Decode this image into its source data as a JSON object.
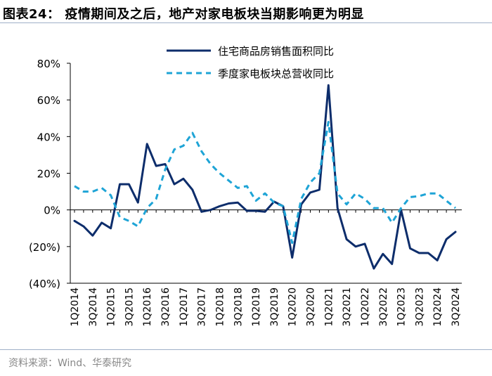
{
  "header": {
    "title": "图表24：  疫情期间及之后，地产对家电板块当期影响更为明显"
  },
  "footer": {
    "source": "资料来源：Wind、华泰研究"
  },
  "chart_data": {
    "type": "line",
    "title": "",
    "xlabel": "",
    "ylabel": "",
    "ylim": [
      -40,
      80
    ],
    "y_ticks": [
      -40,
      -20,
      0,
      20,
      40,
      60,
      80
    ],
    "y_tick_labels": [
      "(40%)",
      "(20%)",
      "0%",
      "20%",
      "40%",
      "60%",
      "80%"
    ],
    "x_tick_labels": [
      "1Q2014",
      "3Q2014",
      "1Q2015",
      "3Q2015",
      "1Q2016",
      "3Q2016",
      "1Q2017",
      "3Q2017",
      "1Q2018",
      "3Q2018",
      "1Q2019",
      "3Q2019",
      "1Q2020",
      "3Q2020",
      "1Q2021",
      "3Q2021",
      "1Q2022",
      "3Q2022",
      "1Q2023",
      "3Q2023",
      "1Q2024",
      "3Q2024"
    ],
    "legend_position": "top-center",
    "series": [
      {
        "name": "住宅商品房销售面积同比",
        "color": "#0d2d6b",
        "style": "solid",
        "values": [
          -6,
          -9,
          -14,
          -7,
          -10,
          14,
          14,
          4,
          36,
          24,
          25,
          14,
          17,
          11,
          -1,
          0,
          2,
          3.5,
          4,
          -0.5,
          -0.5,
          -1,
          4.5,
          2,
          -26,
          3,
          9.5,
          11,
          68,
          1,
          -16,
          -20,
          -18.5,
          -32,
          -24,
          -29.5,
          0,
          -21,
          -23.5,
          -23.5,
          -27.5,
          -16,
          -12
        ]
      },
      {
        "name": "季度家电板块总营收同比",
        "color": "#1ea4d6",
        "style": "dashed",
        "values": [
          13,
          10,
          10,
          12,
          8,
          -4,
          -6,
          -9,
          1,
          6,
          22,
          33,
          35,
          42,
          32,
          25,
          20,
          16,
          12,
          13,
          5,
          9,
          4,
          2,
          -18,
          6,
          15,
          20,
          48,
          9,
          3,
          9,
          6,
          1,
          1,
          -7,
          1,
          7,
          7.5,
          9,
          9,
          5,
          1
        ]
      }
    ]
  }
}
